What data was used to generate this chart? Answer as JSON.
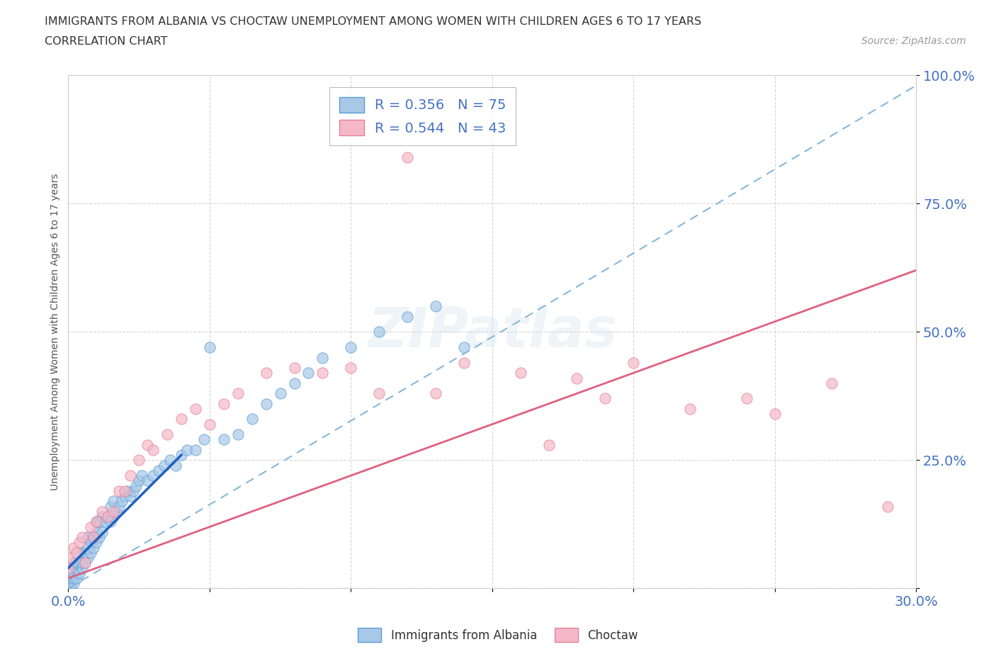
{
  "title_line1": "IMMIGRANTS FROM ALBANIA VS CHOCTAW UNEMPLOYMENT AMONG WOMEN WITH CHILDREN AGES 6 TO 17 YEARS",
  "title_line2": "CORRELATION CHART",
  "source_text": "Source: ZipAtlas.com",
  "ylabel": "Unemployment Among Women with Children Ages 6 to 17 years",
  "xlim": [
    0.0,
    0.3
  ],
  "ylim": [
    0.0,
    1.0
  ],
  "xtick_positions": [
    0.0,
    0.05,
    0.1,
    0.15,
    0.2,
    0.25,
    0.3
  ],
  "xticklabels": [
    "0.0%",
    "",
    "",
    "",
    "",
    "",
    "30.0%"
  ],
  "ytick_positions": [
    0.0,
    0.25,
    0.5,
    0.75,
    1.0
  ],
  "yticklabels": [
    "",
    "25.0%",
    "50.0%",
    "75.0%",
    "100.0%"
  ],
  "legend_r1": "R = 0.356",
  "legend_n1": "N = 75",
  "legend_r2": "R = 0.544",
  "legend_n2": "N = 43",
  "color_albania": "#a8c8e8",
  "color_albania_edge": "#5a9fd4",
  "color_choctaw": "#f4b8c8",
  "color_choctaw_edge": "#e88098",
  "color_albania_line_solid": "#2060c0",
  "color_albania_line_dashed": "#88b8d8",
  "color_choctaw_line": "#e06080",
  "watermark": "ZIPatlas",
  "tick_color": "#4472c4",
  "grid_color": "#cccccc",
  "albania_x": [
    0.0,
    0.0,
    0.0,
    0.001,
    0.001,
    0.001,
    0.001,
    0.002,
    0.002,
    0.002,
    0.002,
    0.003,
    0.003,
    0.003,
    0.004,
    0.004,
    0.005,
    0.005,
    0.005,
    0.006,
    0.006,
    0.007,
    0.007,
    0.007,
    0.008,
    0.008,
    0.009,
    0.009,
    0.01,
    0.01,
    0.01,
    0.011,
    0.011,
    0.012,
    0.012,
    0.013,
    0.014,
    0.015,
    0.015,
    0.016,
    0.016,
    0.017,
    0.018,
    0.019,
    0.02,
    0.021,
    0.022,
    0.023,
    0.024,
    0.025,
    0.026,
    0.028,
    0.03,
    0.032,
    0.034,
    0.036,
    0.038,
    0.04,
    0.042,
    0.045,
    0.048,
    0.05,
    0.055,
    0.06,
    0.065,
    0.07,
    0.075,
    0.08,
    0.085,
    0.09,
    0.1,
    0.11,
    0.12,
    0.13,
    0.14
  ],
  "albania_y": [
    0.0,
    0.01,
    0.02,
    0.0,
    0.01,
    0.02,
    0.03,
    0.01,
    0.02,
    0.03,
    0.05,
    0.02,
    0.04,
    0.05,
    0.03,
    0.05,
    0.04,
    0.05,
    0.07,
    0.05,
    0.07,
    0.06,
    0.08,
    0.1,
    0.07,
    0.09,
    0.08,
    0.1,
    0.09,
    0.11,
    0.13,
    0.1,
    0.13,
    0.11,
    0.14,
    0.13,
    0.14,
    0.13,
    0.16,
    0.14,
    0.17,
    0.15,
    0.16,
    0.17,
    0.18,
    0.19,
    0.18,
    0.19,
    0.2,
    0.21,
    0.22,
    0.21,
    0.22,
    0.23,
    0.24,
    0.25,
    0.24,
    0.26,
    0.27,
    0.27,
    0.29,
    0.47,
    0.29,
    0.3,
    0.33,
    0.36,
    0.38,
    0.4,
    0.42,
    0.45,
    0.47,
    0.5,
    0.53,
    0.55,
    0.47
  ],
  "choctaw_x": [
    0.0,
    0.001,
    0.002,
    0.003,
    0.004,
    0.005,
    0.006,
    0.008,
    0.009,
    0.01,
    0.012,
    0.014,
    0.016,
    0.018,
    0.02,
    0.022,
    0.025,
    0.028,
    0.03,
    0.035,
    0.04,
    0.045,
    0.05,
    0.055,
    0.06,
    0.07,
    0.08,
    0.09,
    0.1,
    0.11,
    0.12,
    0.13,
    0.14,
    0.16,
    0.17,
    0.18,
    0.19,
    0.2,
    0.22,
    0.24,
    0.25,
    0.27,
    0.29
  ],
  "choctaw_y": [
    0.04,
    0.06,
    0.08,
    0.07,
    0.09,
    0.1,
    0.05,
    0.12,
    0.1,
    0.13,
    0.15,
    0.14,
    0.15,
    0.19,
    0.19,
    0.22,
    0.25,
    0.28,
    0.27,
    0.3,
    0.33,
    0.35,
    0.32,
    0.36,
    0.38,
    0.42,
    0.43,
    0.42,
    0.43,
    0.38,
    0.84,
    0.38,
    0.44,
    0.42,
    0.28,
    0.41,
    0.37,
    0.44,
    0.35,
    0.37,
    0.34,
    0.4,
    0.16
  ],
  "albania_solid_line_x": [
    0.0,
    0.04
  ],
  "albania_solid_line_y": [
    0.04,
    0.26
  ],
  "albania_dashed_line_x": [
    0.0,
    0.3
  ],
  "albania_dashed_line_y": [
    0.0,
    0.98
  ],
  "choctaw_line_x": [
    0.0,
    0.3
  ],
  "choctaw_line_y": [
    0.02,
    0.62
  ]
}
